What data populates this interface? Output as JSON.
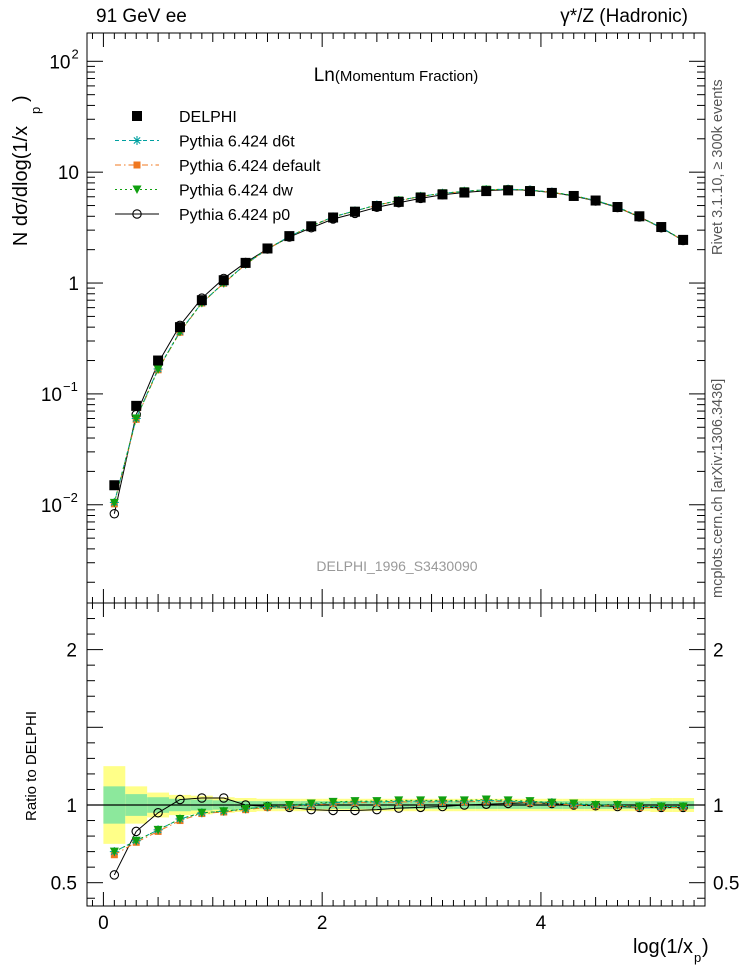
{
  "header": {
    "left": "91 GeV ee",
    "right": "γ*/Z (Hadronic)"
  },
  "side_labels": {
    "rivet": "Rivet 3.1.10, ≥ 300k events",
    "mcplots": "mcplots.cern.ch [arXiv:1306.3436]"
  },
  "chart_data": {
    "type": "scatter",
    "title": "Ln(Momentum Fraction)",
    "title_main": "Ln",
    "title_sub": "(Momentum Fraction)",
    "analysis_id": "DELPHI_1996_S3430090",
    "xlabel": "log(1/x",
    "xlabel_sub": "p",
    "ylabel": "N dσ/dlog(1/x",
    "ylabel_sub": "p",
    "ratio_ylabel": "Ratio to DELPHI",
    "xlim": [
      -0.15,
      5.5
    ],
    "ylim_log": [
      0.0013,
      180
    ],
    "ratio_ylim": [
      0.35,
      2.3
    ],
    "x_ticks": [
      0,
      2,
      4
    ],
    "x_tick_labels": [
      "0",
      "2",
      "4"
    ],
    "y_ticks": [
      0.01,
      0.1,
      1,
      10,
      100
    ],
    "y_tick_labels": [
      {
        "base": "10",
        "exp": "−2"
      },
      {
        "base": "10",
        "exp": "−1"
      },
      {
        "base": "1",
        "exp": ""
      },
      {
        "base": "10",
        "exp": ""
      },
      {
        "base": "10",
        "exp": "2"
      }
    ],
    "ratio_ticks": [
      0.5,
      1,
      2
    ],
    "ratio_tick_labels": [
      "0.5",
      "1",
      "2"
    ],
    "x": [
      0.1,
      0.3,
      0.5,
      0.7,
      0.9,
      1.1,
      1.3,
      1.5,
      1.7,
      1.9,
      2.1,
      2.3,
      2.5,
      2.7,
      2.9,
      3.1,
      3.3,
      3.5,
      3.7,
      3.9,
      4.1,
      4.3,
      4.5,
      4.7,
      4.9,
      5.1,
      5.3
    ],
    "band_edges": [
      0,
      0.2,
      0.4,
      0.6,
      0.8,
      1.0,
      1.2,
      1.4,
      1.6,
      1.8,
      2.0,
      2.2,
      2.4,
      2.6,
      2.8,
      3.0,
      3.2,
      3.4,
      3.6,
      3.8,
      4.0,
      4.2,
      4.4,
      4.6,
      4.8,
      5.0,
      5.2,
      5.4
    ],
    "band_stat": [
      0.12,
      0.07,
      0.05,
      0.04,
      0.035,
      0.03,
      0.025,
      0.025,
      0.025,
      0.025,
      0.025,
      0.025,
      0.025,
      0.025,
      0.025,
      0.025,
      0.025,
      0.025,
      0.025,
      0.025,
      0.025,
      0.025,
      0.025,
      0.025,
      0.025,
      0.025,
      0.025
    ],
    "band_total": [
      0.25,
      0.12,
      0.08,
      0.065,
      0.06,
      0.05,
      0.045,
      0.04,
      0.04,
      0.04,
      0.04,
      0.04,
      0.04,
      0.04,
      0.04,
      0.04,
      0.04,
      0.04,
      0.04,
      0.04,
      0.04,
      0.04,
      0.04,
      0.04,
      0.04,
      0.045,
      0.045
    ],
    "series": [
      {
        "name": "DELPHI",
        "color": "#000000",
        "marker": "square",
        "line": "none",
        "values": [
          0.015,
          0.078,
          0.2,
          0.4,
          0.7,
          1.06,
          1.52,
          2.05,
          2.65,
          3.25,
          3.9,
          4.4,
          4.95,
          5.4,
          5.9,
          6.3,
          6.55,
          6.75,
          6.85,
          6.75,
          6.5,
          6.1,
          5.55,
          4.85,
          4.0,
          3.2,
          2.45
        ],
        "ratio": []
      },
      {
        "name": "Pythia 6.424 d6t",
        "color": "#00a0a0",
        "marker": "star",
        "line": "dash",
        "values": [
          0.0105,
          0.06,
          0.168,
          0.365,
          0.665,
          1.0,
          1.48,
          2.03,
          2.63,
          3.27,
          3.95,
          4.48,
          5.05,
          5.55,
          6.05,
          6.45,
          6.72,
          6.95,
          7.02,
          6.9,
          6.6,
          6.15,
          5.55,
          4.85,
          3.97,
          3.17,
          2.43
        ],
        "ratio": [
          0.7,
          0.77,
          0.84,
          0.91,
          0.95,
          0.96,
          0.975,
          0.99,
          0.995,
          1.005,
          1.015,
          1.02,
          1.02,
          1.025,
          1.025,
          1.025,
          1.025,
          1.03,
          1.025,
          1.02,
          1.015,
          1.005,
          1.0,
          1.0,
          0.99,
          0.99,
          0.99
        ]
      },
      {
        "name": "Pythia 6.424 default",
        "color": "#f07820",
        "marker": "square-small",
        "line": "dashdot",
        "values": [
          0.0102,
          0.059,
          0.165,
          0.36,
          0.66,
          0.995,
          1.47,
          2.02,
          2.62,
          3.26,
          3.93,
          4.46,
          5.03,
          5.53,
          6.03,
          6.42,
          6.7,
          6.92,
          7.0,
          6.88,
          6.58,
          6.13,
          5.53,
          4.83,
          3.96,
          3.16,
          2.42
        ],
        "ratio": [
          0.68,
          0.76,
          0.83,
          0.9,
          0.945,
          0.955,
          0.97,
          0.985,
          0.99,
          1.0,
          1.01,
          1.015,
          1.015,
          1.02,
          1.02,
          1.02,
          1.02,
          1.025,
          1.02,
          1.015,
          1.01,
          1.0,
          0.995,
          0.995,
          0.985,
          0.985,
          0.985
        ]
      },
      {
        "name": "Pythia 6.424 dw",
        "color": "#10a010",
        "marker": "triangle-down",
        "line": "dot",
        "values": [
          0.0104,
          0.06,
          0.167,
          0.363,
          0.663,
          0.998,
          1.48,
          2.03,
          2.63,
          3.27,
          3.95,
          4.48,
          5.05,
          5.55,
          6.05,
          6.45,
          6.72,
          6.95,
          7.02,
          6.9,
          6.6,
          6.15,
          5.55,
          4.85,
          3.97,
          3.17,
          2.43
        ],
        "ratio": [
          0.7,
          0.77,
          0.84,
          0.91,
          0.95,
          0.96,
          0.975,
          0.99,
          1.0,
          1.01,
          1.02,
          1.025,
          1.025,
          1.03,
          1.03,
          1.03,
          1.03,
          1.035,
          1.03,
          1.025,
          1.015,
          1.01,
          1.0,
          1.0,
          0.99,
          0.99,
          0.99
        ]
      },
      {
        "name": "Pythia 6.424 p0",
        "color": "#000000",
        "marker": "circle-open",
        "line": "solid",
        "values": [
          0.0083,
          0.065,
          0.19,
          0.415,
          0.73,
          1.1,
          1.53,
          2.03,
          2.6,
          3.15,
          3.78,
          4.25,
          4.82,
          5.3,
          5.8,
          6.25,
          6.55,
          6.8,
          6.95,
          6.85,
          6.55,
          6.1,
          5.5,
          4.8,
          3.95,
          3.15,
          2.42
        ],
        "ratio": [
          0.55,
          0.83,
          0.95,
          1.035,
          1.045,
          1.045,
          1.0,
          0.99,
          0.985,
          0.97,
          0.965,
          0.965,
          0.97,
          0.98,
          0.985,
          0.99,
          1.0,
          1.005,
          1.01,
          1.015,
          1.01,
          1.0,
          0.995,
          0.99,
          0.985,
          0.985,
          0.985
        ]
      }
    ]
  }
}
